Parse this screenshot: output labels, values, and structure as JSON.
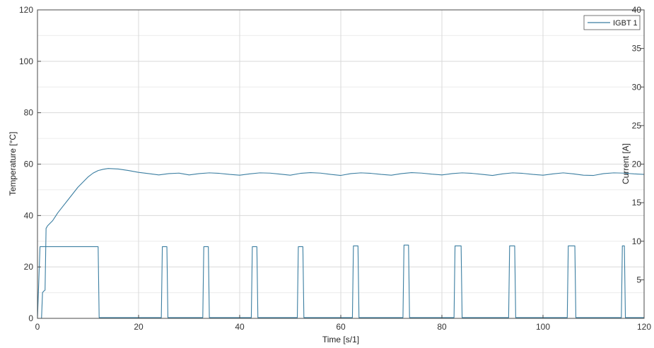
{
  "chart_data": {
    "type": "line",
    "xlabel": "Time [s/1]",
    "ylabel_left": "Temperature [°C]",
    "ylabel_right": "Current [A]",
    "xlim": [
      0,
      120
    ],
    "ylim_left": [
      0,
      120
    ],
    "ylim_right": [
      0,
      40
    ],
    "x_ticks": [
      0,
      20,
      40,
      60,
      80,
      100,
      120
    ],
    "y_ticks_left": [
      0,
      20,
      40,
      60,
      80,
      100,
      120
    ],
    "y_ticks_right": [
      5,
      10,
      15,
      20,
      25,
      30,
      35,
      40
    ],
    "grid": true,
    "legend_position": "top-right",
    "line_color": "#3b7ea1",
    "series": [
      {
        "name": "IGBT 1",
        "axis": "left",
        "x": [
          0.8,
          1.0,
          1.2,
          1.5,
          1.7,
          2.0,
          2.5,
          3.0,
          3.5,
          4.0,
          5.0,
          6.0,
          7.0,
          8.0,
          9.0,
          10.0,
          11.0,
          12.0,
          13.0,
          14.0,
          15.0,
          16.0,
          18.0,
          20.0,
          22.0,
          24.0,
          26.0,
          28.0,
          30.0,
          32.0,
          34.0,
          36.0,
          38.0,
          40.0,
          42.0,
          44.0,
          46.0,
          48.0,
          50.0,
          52.0,
          54.0,
          56.0,
          58.0,
          60.0,
          62.0,
          64.0,
          66.0,
          68.0,
          70.0,
          72.0,
          74.0,
          76.0,
          78.0,
          80.0,
          82.0,
          84.0,
          86.0,
          88.0,
          90.0,
          92.0,
          94.0,
          96.0,
          98.0,
          100.0,
          102.0,
          104.0,
          106.0,
          108.0,
          110.0,
          112.0,
          114.0,
          116.0,
          118.0,
          120.0
        ],
        "y": [
          0,
          10,
          10.5,
          11,
          35,
          36,
          37,
          38,
          39.5,
          41,
          43.5,
          46,
          48.5,
          51,
          53,
          55,
          56.5,
          57.5,
          58,
          58.3,
          58.2,
          58.1,
          57.5,
          56.8,
          56.3,
          55.8,
          56.3,
          56.5,
          55.8,
          56.3,
          56.6,
          56.4,
          56.0,
          55.7,
          56.2,
          56.6,
          56.5,
          56.1,
          55.7,
          56.4,
          56.7,
          56.5,
          56.0,
          55.6,
          56.3,
          56.6,
          56.4,
          56.0,
          55.7,
          56.3,
          56.7,
          56.5,
          56.1,
          55.8,
          56.3,
          56.6,
          56.4,
          56.0,
          55.6,
          56.2,
          56.6,
          56.4,
          56.0,
          55.7,
          56.2,
          56.6,
          56.2,
          55.7,
          55.6,
          56.3,
          56.6,
          56.5,
          56.2,
          56.0
        ]
      },
      {
        "name": "",
        "axis": "right",
        "x": [
          0,
          0.5,
          1.0,
          12.0,
          12.2,
          24.5,
          24.7,
          25.6,
          25.8,
          32.7,
          32.9,
          33.8,
          34.0,
          42.3,
          42.5,
          43.4,
          43.6,
          51.4,
          51.6,
          52.5,
          52.7,
          62.3,
          62.5,
          63.4,
          63.6,
          72.3,
          72.5,
          73.4,
          73.6,
          82.4,
          82.6,
          83.8,
          84.0,
          93.2,
          93.4,
          94.4,
          94.6,
          104.8,
          105.0,
          106.3,
          106.5,
          115.5,
          115.7,
          116.1,
          116.3,
          120.0
        ],
        "y": [
          0,
          9.3,
          9.3,
          9.3,
          0.1,
          0.1,
          9.3,
          9.3,
          0.1,
          0.1,
          9.3,
          9.3,
          0.1,
          0.1,
          9.3,
          9.3,
          0.1,
          0.1,
          9.3,
          9.3,
          0.1,
          0.1,
          9.4,
          9.4,
          0.1,
          0.1,
          9.5,
          9.5,
          0.1,
          0.1,
          9.4,
          9.4,
          0.1,
          0.1,
          9.4,
          9.4,
          0.1,
          0.1,
          9.4,
          9.4,
          0.1,
          0.1,
          9.4,
          9.4,
          0.1,
          0.1
        ]
      }
    ]
  }
}
